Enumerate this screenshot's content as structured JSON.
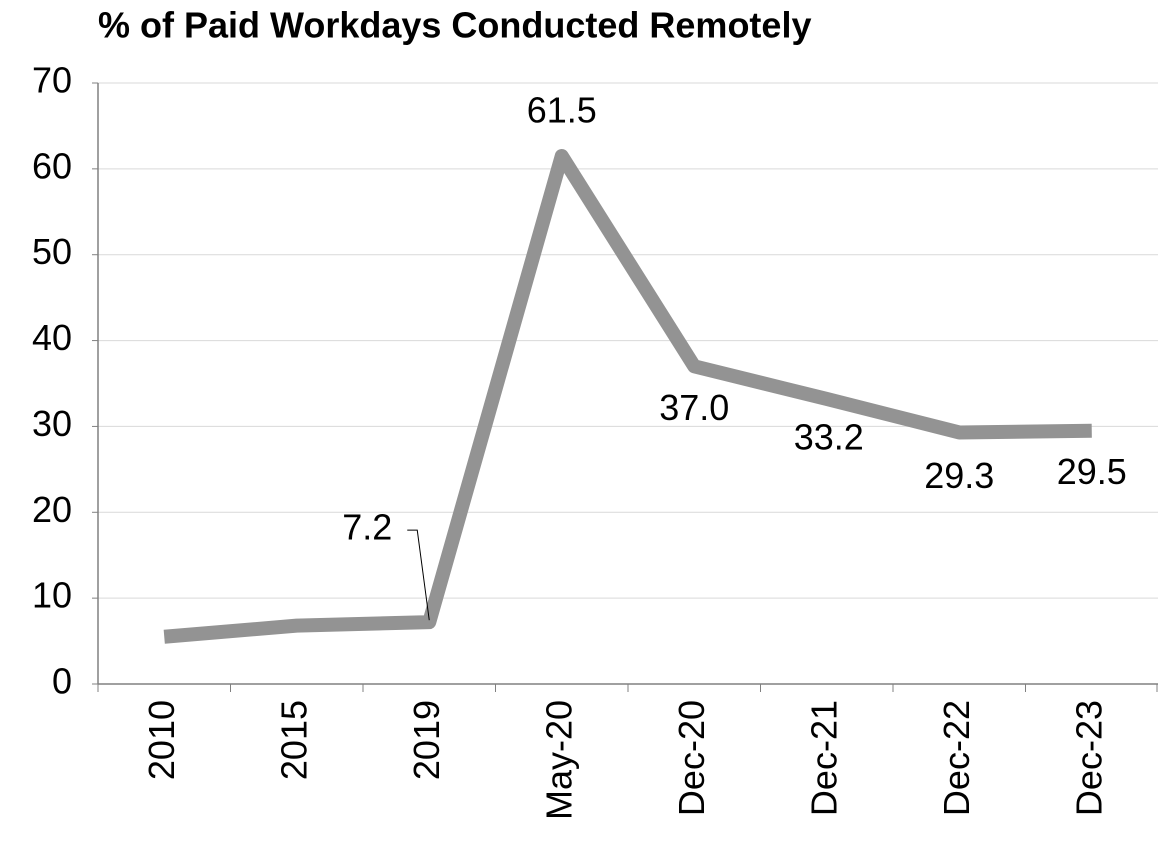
{
  "chart_data": {
    "type": "line",
    "title": "% of Paid Workdays Conducted Remotely",
    "categories": [
      "2010",
      "2015",
      "2019",
      "May-20",
      "Dec-20",
      "Dec-21",
      "Dec-22",
      "Dec-23"
    ],
    "values": [
      5.5,
      6.8,
      7.2,
      61.5,
      37.0,
      33.2,
      29.3,
      29.5
    ],
    "value_labels": [
      null,
      null,
      "7.2",
      "61.5",
      "37.0",
      "33.2",
      "29.3",
      "29.5"
    ],
    "color": "#939393",
    "ylim": [
      0,
      70
    ],
    "yticks": [
      0,
      10,
      20,
      30,
      40,
      50,
      60,
      70
    ],
    "grid": true
  }
}
